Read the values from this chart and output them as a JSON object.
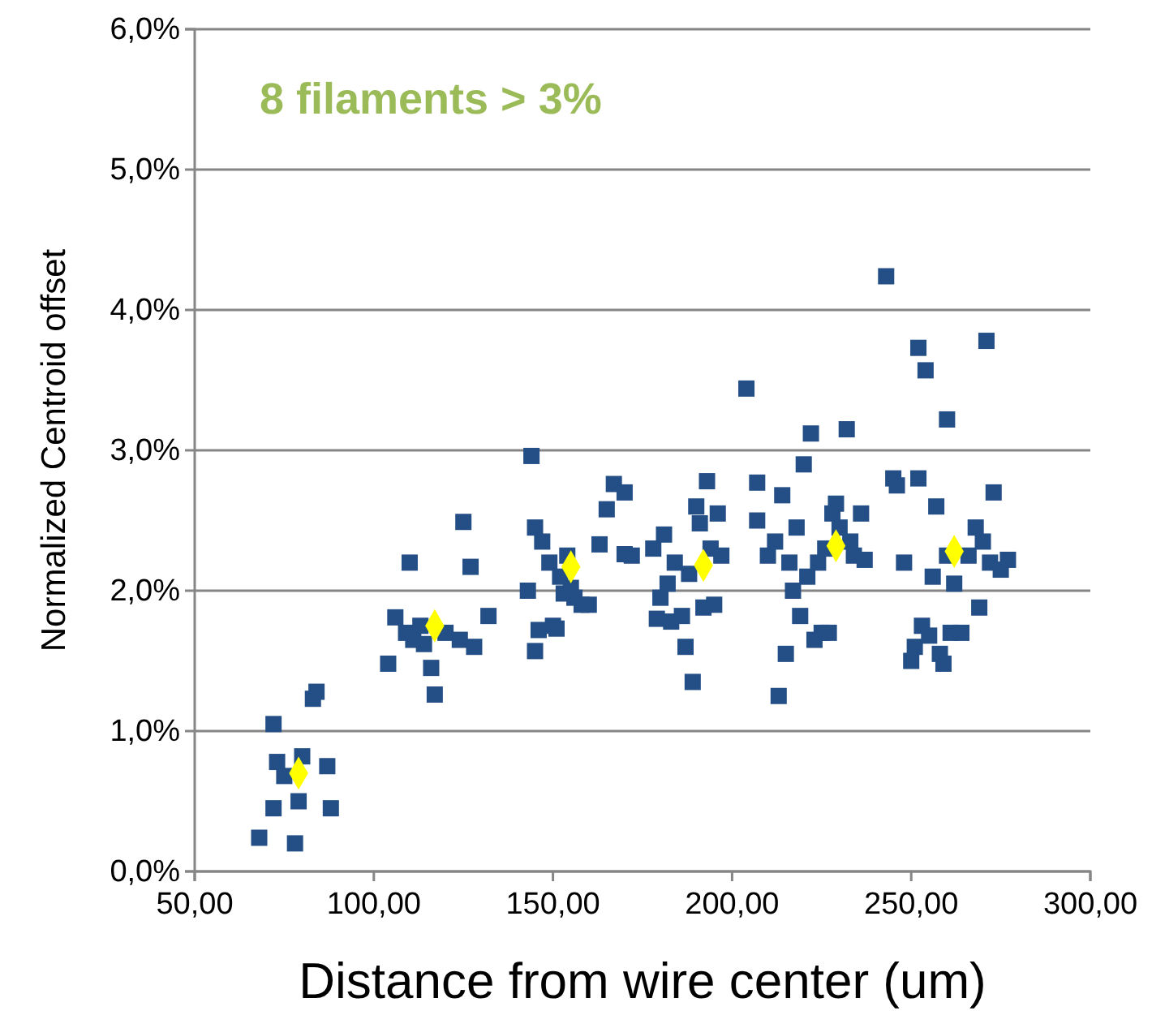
{
  "chart_data": {
    "type": "scatter",
    "xlabel": "Distance from wire center (um)",
    "ylabel": "Normalized Centroid offset",
    "annotations": [
      "8 filaments > 3%"
    ],
    "xlim": [
      50,
      300
    ],
    "xticks": [
      {
        "value": 50,
        "label": "50,00"
      },
      {
        "value": 100,
        "label": "100,00"
      },
      {
        "value": 150,
        "label": "150,00"
      },
      {
        "value": 200,
        "label": "200,00"
      },
      {
        "value": 250,
        "label": "250,00"
      },
      {
        "value": 300,
        "label": "300,00"
      }
    ],
    "ylim": [
      0,
      6
    ],
    "yticks": [
      {
        "value": 0,
        "label": "0,0%"
      },
      {
        "value": 1,
        "label": "1,0%"
      },
      {
        "value": 2,
        "label": "2,0%"
      },
      {
        "value": 3,
        "label": "3,0%"
      },
      {
        "value": 4,
        "label": "4,0%"
      },
      {
        "value": 5,
        "label": "5,0%"
      },
      {
        "value": 6,
        "label": "6,0%"
      }
    ],
    "grid": "y",
    "series": [
      {
        "color": "#234e86",
        "marker": "square",
        "x": [
          68,
          72,
          73,
          72,
          75,
          78,
          79,
          80,
          83,
          84,
          87,
          88,
          104,
          106,
          109,
          110,
          111,
          113,
          114,
          116,
          117,
          120,
          124,
          125,
          127,
          128,
          132,
          143,
          144,
          145,
          145,
          146,
          147,
          149,
          150,
          151,
          152,
          153,
          154,
          155,
          156,
          158,
          160,
          163,
          165,
          167,
          170,
          170,
          172,
          178,
          179,
          180,
          181,
          182,
          183,
          184,
          186,
          187,
          188,
          189,
          190,
          191,
          192,
          193,
          194,
          195,
          196,
          197,
          204,
          207,
          207,
          210,
          212,
          213,
          214,
          215,
          216,
          217,
          218,
          219,
          220,
          221,
          222,
          223,
          224,
          225,
          226,
          227,
          228,
          229,
          230,
          232,
          233,
          234,
          236,
          237,
          243,
          245,
          246,
          248,
          250,
          251,
          252,
          252,
          253,
          254,
          255,
          256,
          257,
          258,
          259,
          260,
          260,
          261,
          262,
          264,
          266,
          268,
          269,
          270,
          271,
          272,
          273,
          275,
          277
        ],
        "values": [
          0.24,
          1.05,
          0.78,
          0.45,
          0.68,
          0.2,
          0.5,
          0.82,
          1.23,
          1.28,
          0.75,
          0.45,
          1.48,
          1.81,
          1.7,
          2.2,
          1.65,
          1.75,
          1.62,
          1.45,
          1.26,
          1.7,
          1.65,
          2.49,
          2.17,
          1.6,
          1.82,
          2.0,
          2.96,
          2.45,
          1.57,
          1.72,
          2.35,
          2.2,
          1.75,
          1.73,
          2.1,
          1.98,
          2.25,
          2.02,
          1.95,
          1.9,
          1.9,
          2.33,
          2.58,
          2.76,
          2.7,
          2.26,
          2.25,
          2.3,
          1.8,
          1.95,
          2.4,
          2.05,
          1.78,
          2.2,
          1.82,
          1.6,
          2.12,
          1.35,
          2.6,
          2.48,
          1.88,
          2.78,
          2.3,
          1.9,
          2.55,
          2.25,
          3.44,
          2.77,
          2.5,
          2.25,
          2.35,
          1.25,
          2.68,
          1.55,
          2.2,
          2.0,
          2.45,
          1.82,
          2.9,
          2.1,
          3.12,
          1.65,
          2.2,
          1.7,
          2.3,
          1.7,
          2.55,
          2.62,
          2.45,
          3.15,
          2.35,
          2.25,
          2.55,
          2.22,
          4.24,
          2.8,
          2.75,
          2.2,
          1.5,
          1.6,
          2.8,
          3.73,
          1.75,
          3.57,
          1.68,
          2.1,
          2.6,
          1.55,
          1.48,
          2.25,
          3.22,
          1.7,
          2.05,
          1.7,
          2.25,
          2.45,
          1.88,
          2.35,
          3.78,
          2.2,
          2.7,
          2.15,
          2.22
        ]
      },
      {
        "color": "#ffff00",
        "marker": "diamond",
        "x": [
          79,
          117,
          155,
          192,
          229,
          262
        ],
        "values": [
          0.7,
          1.75,
          2.17,
          2.18,
          2.32,
          2.28
        ]
      }
    ]
  }
}
